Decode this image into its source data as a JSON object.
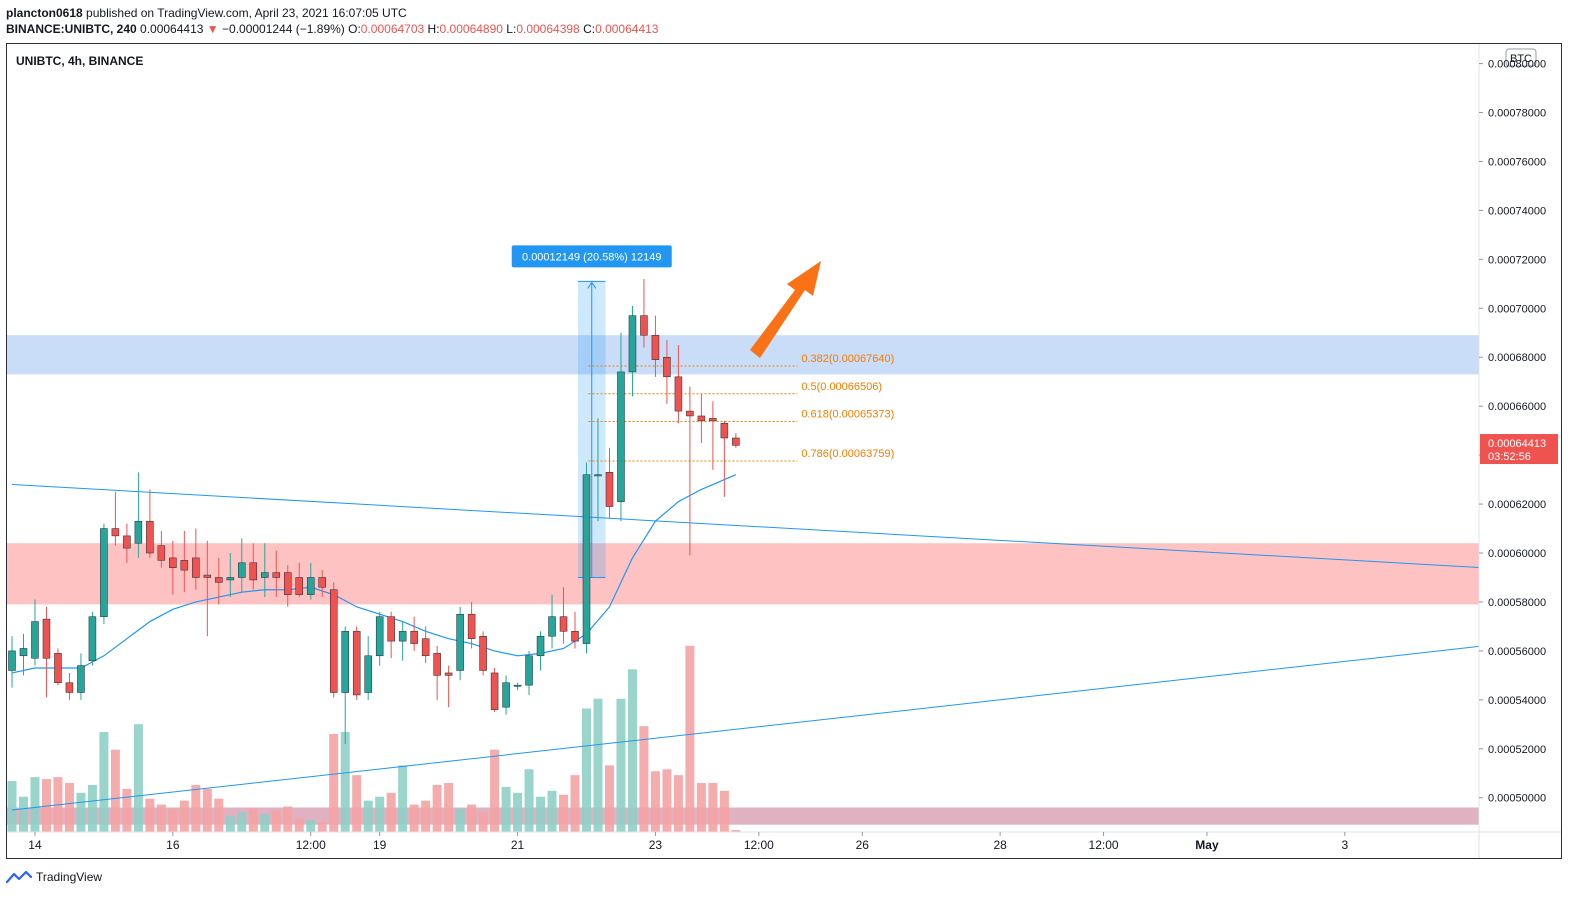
{
  "header": {
    "publisher": "plancton0618",
    "published_text": "published on TradingView.com, April 23, 2021 16:07:05 UTC",
    "symbol": "BINANCE:UNIBTC, 240",
    "last": "0.00064413",
    "change_arrow": "▼",
    "change": "−0.00001244 (−1.89%)",
    "o_label": "O:",
    "o_value": "0.00064703",
    "h_label": "H:",
    "h_value": "0.00064890",
    "l_label": "L:",
    "l_value": "0.00064398",
    "c_label": "C:",
    "c_value": "0.00064413"
  },
  "chart_title": "UNIBTC, 4h, BINANCE",
  "currency_badge": "BTC",
  "price_tag": {
    "price": "0.00064413",
    "countdown": "03:52:56",
    "value": 0.00064413
  },
  "measure_label": "0.00012149 (20.58%) 12149",
  "footer": {
    "brand": "TradingView",
    "logo_icon": "tradingview-logo-icon"
  },
  "colors": {
    "up": "#26a69a",
    "down": "#ef5350",
    "up_vol": "#8fd0c6",
    "down_vol": "#f4a3a3",
    "ma": "#2196f3",
    "fib": "#f57c00",
    "zone_blue": "#bcd4f7",
    "zone_red": "#ffb3b3",
    "arrow": "#f97316",
    "badge": "#2196f3",
    "tag": "#ef5350"
  },
  "chart_data": {
    "type": "candlestick",
    "ylim": [
      0.000486,
      0.000808
    ],
    "y_ticks": [
      {
        "v": 0.0005,
        "label": "0.00050000"
      },
      {
        "v": 0.00052,
        "label": "0.00052000"
      },
      {
        "v": 0.00054,
        "label": "0.00054000"
      },
      {
        "v": 0.00056,
        "label": "0.00056000"
      },
      {
        "v": 0.00058,
        "label": "0.00058000"
      },
      {
        "v": 0.0006,
        "label": "0.00060000"
      },
      {
        "v": 0.00062,
        "label": "0.00062000"
      },
      {
        "v": 0.00064,
        "label": "0.00064000"
      },
      {
        "v": 0.00066,
        "label": "0.00066000"
      },
      {
        "v": 0.00068,
        "label": "0.00068000"
      },
      {
        "v": 0.0007,
        "label": "0.00070000"
      },
      {
        "v": 0.00072,
        "label": "0.00072000"
      },
      {
        "v": 0.00074,
        "label": "0.00074000"
      },
      {
        "v": 0.00076,
        "label": "0.00076000"
      },
      {
        "v": 0.00078,
        "label": "0.00078000"
      },
      {
        "v": 0.0008,
        "label": "0.00080000"
      }
    ],
    "x_ticks": [
      {
        "i": 2,
        "label": "14",
        "bold": false
      },
      {
        "i": 14,
        "label": "16",
        "bold": false
      },
      {
        "i": 26,
        "label": "12:00",
        "bold": false
      },
      {
        "i": 32,
        "label": "19",
        "bold": false
      },
      {
        "i": 44,
        "label": "21",
        "bold": false
      },
      {
        "i": 56,
        "label": "23",
        "bold": false
      },
      {
        "i": 65,
        "label": "12:00",
        "bold": false
      },
      {
        "i": 74,
        "label": "26",
        "bold": false
      },
      {
        "i": 86,
        "label": "28",
        "bold": false
      },
      {
        "i": 95,
        "label": "12:00",
        "bold": false
      },
      {
        "i": 104,
        "label": "May",
        "bold": true
      },
      {
        "i": 116,
        "label": "3",
        "bold": false
      }
    ],
    "candles": [
      {
        "i": 0,
        "o": 0.000552,
        "h": 0.000566,
        "l": 0.000545,
        "c": 0.00056,
        "v": 0.26
      },
      {
        "i": 1,
        "o": 0.000558,
        "h": 0.000567,
        "l": 0.00055,
        "c": 0.000561,
        "v": 0.18
      },
      {
        "i": 2,
        "o": 0.000557,
        "h": 0.000581,
        "l": 0.000554,
        "c": 0.000572,
        "v": 0.28
      },
      {
        "i": 3,
        "o": 0.000573,
        "h": 0.000578,
        "l": 0.000541,
        "c": 0.000557,
        "v": 0.27
      },
      {
        "i": 4,
        "o": 0.000559,
        "h": 0.000561,
        "l": 0.000546,
        "c": 0.000547,
        "v": 0.28
      },
      {
        "i": 5,
        "o": 0.000547,
        "h": 0.000551,
        "l": 0.00054,
        "c": 0.000543,
        "v": 0.25
      },
      {
        "i": 6,
        "o": 0.000543,
        "h": 0.000559,
        "l": 0.00054,
        "c": 0.000554,
        "v": 0.2
      },
      {
        "i": 7,
        "o": 0.000556,
        "h": 0.000576,
        "l": 0.000554,
        "c": 0.000574,
        "v": 0.24
      },
      {
        "i": 8,
        "o": 0.000574,
        "h": 0.000612,
        "l": 0.000571,
        "c": 0.00061,
        "v": 0.51
      },
      {
        "i": 9,
        "o": 0.00061,
        "h": 0.000625,
        "l": 0.000603,
        "c": 0.000607,
        "v": 0.42
      },
      {
        "i": 10,
        "o": 0.000607,
        "h": 0.000612,
        "l": 0.000596,
        "c": 0.000602,
        "v": 0.22
      },
      {
        "i": 11,
        "o": 0.000604,
        "h": 0.000633,
        "l": 0.000598,
        "c": 0.000613,
        "v": 0.55
      },
      {
        "i": 12,
        "o": 0.000613,
        "h": 0.000626,
        "l": 0.000598,
        "c": 0.0006,
        "v": 0.17
      },
      {
        "i": 13,
        "o": 0.000603,
        "h": 0.000609,
        "l": 0.000594,
        "c": 0.000597,
        "v": 0.14
      },
      {
        "i": 14,
        "o": 0.000598,
        "h": 0.000605,
        "l": 0.000583,
        "c": 0.000594,
        "v": 0.12
      },
      {
        "i": 15,
        "o": 0.000597,
        "h": 0.000609,
        "l": 0.000584,
        "c": 0.000593,
        "v": 0.16
      },
      {
        "i": 16,
        "o": 0.000598,
        "h": 0.00061,
        "l": 0.000585,
        "c": 0.00059,
        "v": 0.24
      },
      {
        "i": 17,
        "o": 0.000591,
        "h": 0.000605,
        "l": 0.000566,
        "c": 0.00059,
        "v": 0.22
      },
      {
        "i": 18,
        "o": 0.00059,
        "h": 0.000598,
        "l": 0.000579,
        "c": 0.000588,
        "v": 0.17
      },
      {
        "i": 19,
        "o": 0.000589,
        "h": 0.0006,
        "l": 0.000582,
        "c": 0.00059,
        "v": 0.08
      },
      {
        "i": 20,
        "o": 0.00059,
        "h": 0.000606,
        "l": 0.000584,
        "c": 0.000596,
        "v": 0.1
      },
      {
        "i": 21,
        "o": 0.000596,
        "h": 0.000604,
        "l": 0.000585,
        "c": 0.000589,
        "v": 0.12
      },
      {
        "i": 22,
        "o": 0.00059,
        "h": 0.000604,
        "l": 0.000582,
        "c": 0.000592,
        "v": 0.09
      },
      {
        "i": 23,
        "o": 0.000592,
        "h": 0.000601,
        "l": 0.000582,
        "c": 0.00059,
        "v": 0.11
      },
      {
        "i": 24,
        "o": 0.000592,
        "h": 0.000595,
        "l": 0.000578,
        "c": 0.000583,
        "v": 0.13
      },
      {
        "i": 25,
        "o": 0.00059,
        "h": 0.000596,
        "l": 0.000582,
        "c": 0.000583,
        "v": 0.07
      },
      {
        "i": 26,
        "o": 0.000583,
        "h": 0.000596,
        "l": 0.000581,
        "c": 0.00059,
        "v": 0.06
      },
      {
        "i": 27,
        "o": 0.00059,
        "h": 0.000593,
        "l": 0.000582,
        "c": 0.000586,
        "v": 0.05
      },
      {
        "i": 28,
        "o": 0.000585,
        "h": 0.000588,
        "l": 0.000541,
        "c": 0.000543,
        "v": 0.5
      },
      {
        "i": 29,
        "o": 0.000543,
        "h": 0.00057,
        "l": 0.000522,
        "c": 0.000568,
        "v": 0.51
      },
      {
        "i": 30,
        "o": 0.000568,
        "h": 0.00057,
        "l": 0.00054,
        "c": 0.000542,
        "v": 0.29
      },
      {
        "i": 31,
        "o": 0.000543,
        "h": 0.000566,
        "l": 0.00054,
        "c": 0.000558,
        "v": 0.16
      },
      {
        "i": 32,
        "o": 0.000558,
        "h": 0.000576,
        "l": 0.000554,
        "c": 0.000574,
        "v": 0.18
      },
      {
        "i": 33,
        "o": 0.000574,
        "h": 0.000576,
        "l": 0.000557,
        "c": 0.000564,
        "v": 0.2
      },
      {
        "i": 34,
        "o": 0.000564,
        "h": 0.000572,
        "l": 0.000556,
        "c": 0.000568,
        "v": 0.34
      },
      {
        "i": 35,
        "o": 0.000568,
        "h": 0.000574,
        "l": 0.00056,
        "c": 0.000563,
        "v": 0.14
      },
      {
        "i": 36,
        "o": 0.000565,
        "h": 0.00057,
        "l": 0.000555,
        "c": 0.000558,
        "v": 0.16
      },
      {
        "i": 37,
        "o": 0.000559,
        "h": 0.000562,
        "l": 0.00054,
        "c": 0.00055,
        "v": 0.24
      },
      {
        "i": 38,
        "o": 0.000551,
        "h": 0.000554,
        "l": 0.000537,
        "c": 0.00055,
        "v": 0.25
      },
      {
        "i": 39,
        "o": 0.000552,
        "h": 0.000578,
        "l": 0.000548,
        "c": 0.000575,
        "v": 0.12
      },
      {
        "i": 40,
        "o": 0.000575,
        "h": 0.00058,
        "l": 0.000561,
        "c": 0.000565,
        "v": 0.14
      },
      {
        "i": 41,
        "o": 0.000566,
        "h": 0.000568,
        "l": 0.00055,
        "c": 0.000552,
        "v": 0.1
      },
      {
        "i": 42,
        "o": 0.000551,
        "h": 0.000553,
        "l": 0.000535,
        "c": 0.000536,
        "v": 0.42
      },
      {
        "i": 43,
        "o": 0.000537,
        "h": 0.00055,
        "l": 0.000534,
        "c": 0.000547,
        "v": 0.23
      },
      {
        "i": 44,
        "o": 0.000546,
        "h": 0.000547,
        "l": 0.000544,
        "c": 0.000546,
        "v": 0.2
      },
      {
        "i": 45,
        "o": 0.000546,
        "h": 0.00056,
        "l": 0.000542,
        "c": 0.000558,
        "v": 0.32
      },
      {
        "i": 46,
        "o": 0.000558,
        "h": 0.000568,
        "l": 0.000552,
        "c": 0.000566,
        "v": 0.18
      },
      {
        "i": 47,
        "o": 0.000566,
        "h": 0.000583,
        "l": 0.000561,
        "c": 0.000574,
        "v": 0.21
      },
      {
        "i": 48,
        "o": 0.000574,
        "h": 0.000586,
        "l": 0.000563,
        "c": 0.000568,
        "v": 0.19
      },
      {
        "i": 49,
        "o": 0.000568,
        "h": 0.000576,
        "l": 0.000561,
        "c": 0.000564,
        "v": 0.29
      },
      {
        "i": 50,
        "o": 0.000563,
        "h": 0.000637,
        "l": 0.000559,
        "c": 0.000632,
        "v": 0.63
      },
      {
        "i": 51,
        "o": 0.000632,
        "h": 0.000655,
        "l": 0.000613,
        "c": 0.000632,
        "v": 0.68
      },
      {
        "i": 52,
        "o": 0.000633,
        "h": 0.000643,
        "l": 0.000614,
        "c": 0.000619,
        "v": 0.34
      },
      {
        "i": 53,
        "o": 0.000621,
        "h": 0.00069,
        "l": 0.000613,
        "c": 0.000674,
        "v": 0.68
      },
      {
        "i": 54,
        "o": 0.000674,
        "h": 0.000701,
        "l": 0.000664,
        "c": 0.000697,
        "v": 0.83
      },
      {
        "i": 55,
        "o": 0.000697,
        "h": 0.000712,
        "l": 0.000684,
        "c": 0.000689,
        "v": 0.54
      },
      {
        "i": 56,
        "o": 0.000689,
        "h": 0.000697,
        "l": 0.000672,
        "c": 0.000679,
        "v": 0.31
      },
      {
        "i": 57,
        "o": 0.00068,
        "h": 0.000687,
        "l": 0.000661,
        "c": 0.000672,
        "v": 0.32
      },
      {
        "i": 58,
        "o": 0.000672,
        "h": 0.000685,
        "l": 0.000653,
        "c": 0.000658,
        "v": 0.29
      },
      {
        "i": 59,
        "o": 0.000658,
        "h": 0.000668,
        "l": 0.000599,
        "c": 0.000656,
        "v": 0.95
      },
      {
        "i": 60,
        "o": 0.000656,
        "h": 0.000665,
        "l": 0.000645,
        "c": 0.000654,
        "v": 0.25
      },
      {
        "i": 61,
        "o": 0.000655,
        "h": 0.000662,
        "l": 0.000634,
        "c": 0.000654,
        "v": 0.25
      },
      {
        "i": 62,
        "o": 0.000653,
        "h": 0.000654,
        "l": 0.000623,
        "c": 0.000647,
        "v": 0.21
      },
      {
        "i": 63,
        "o": 0.000647,
        "h": 0.000649,
        "l": 0.000643,
        "c": 0.000644,
        "v": 0.01
      }
    ],
    "ma": [
      [
        0,
        0.000551
      ],
      [
        2,
        0.000553
      ],
      [
        4,
        0.000553
      ],
      [
        6,
        0.000553
      ],
      [
        8,
        0.000558
      ],
      [
        10,
        0.000565
      ],
      [
        12,
        0.000572
      ],
      [
        14,
        0.000577
      ],
      [
        16,
        0.00058
      ],
      [
        18,
        0.000582
      ],
      [
        20,
        0.000584
      ],
      [
        22,
        0.000585
      ],
      [
        24,
        0.000585
      ],
      [
        26,
        0.000586
      ],
      [
        28,
        0.000583
      ],
      [
        30,
        0.000578
      ],
      [
        32,
        0.000575
      ],
      [
        34,
        0.000572
      ],
      [
        36,
        0.000568
      ],
      [
        38,
        0.000565
      ],
      [
        40,
        0.000563
      ],
      [
        42,
        0.00056
      ],
      [
        44,
        0.000558
      ],
      [
        46,
        0.000559
      ],
      [
        48,
        0.000561
      ],
      [
        50,
        0.000567
      ],
      [
        52,
        0.000578
      ],
      [
        54,
        0.000598
      ],
      [
        56,
        0.000613
      ],
      [
        58,
        0.000621
      ],
      [
        60,
        0.000626
      ],
      [
        62,
        0.00063
      ],
      [
        63,
        0.000632
      ]
    ],
    "trendlines": [
      {
        "i1": 0,
        "p1": 0.000628,
        "i2": 128,
        "p2": 0.000594
      },
      {
        "i1": 0,
        "p1": 0.000495,
        "i2": 128,
        "p2": 0.000562
      }
    ],
    "zones": [
      {
        "p1": 0.000673,
        "p2": 0.000689,
        "color": "blue"
      },
      {
        "p1": 0.000579,
        "p2": 0.000604,
        "color": "red"
      },
      {
        "p1": 0.000489,
        "p2": 0.000496,
        "color": "mixed"
      }
    ],
    "fib_levels": [
      {
        "label": "0.382(0.00067640)",
        "v": 0.0006764
      },
      {
        "label": "0.5(0.00066506)",
        "v": 0.00066506
      },
      {
        "label": "0.618(0.00065373)",
        "v": 0.00065373
      },
      {
        "label": "0.786(0.00063759)",
        "v": 0.00063759
      }
    ],
    "measure": {
      "i1": 49,
      "i2": 52,
      "p1": 0.00059,
      "p2": 0.000711
    }
  }
}
